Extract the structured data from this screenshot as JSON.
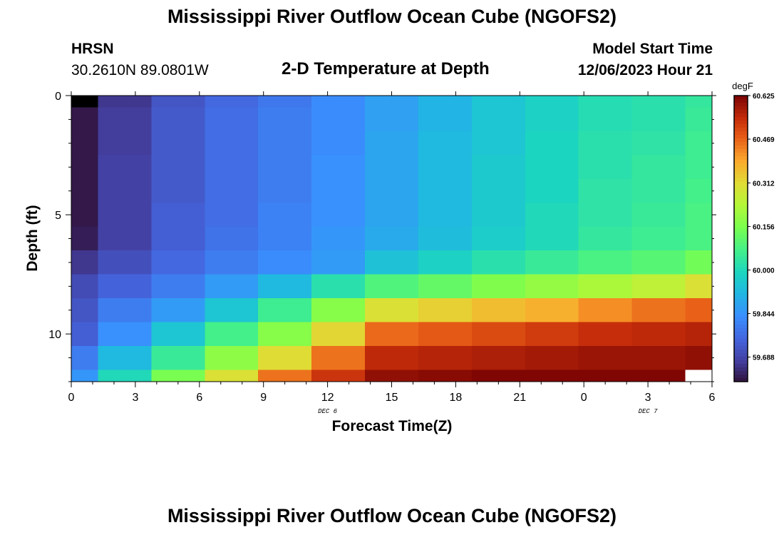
{
  "page": {
    "title": "Mississippi River Outflow Ocean Cube (NGOFS2)",
    "station": "HRSN",
    "location": "30.2610N  89.0801W",
    "subtitle": "2-D Temperature at Depth",
    "model_start_label": "Model Start Time",
    "model_start_value": "12/06/2023 Hour 21",
    "footer_title": "Mississippi River Outflow Ocean Cube (NGOFS2)"
  },
  "chart_data": {
    "type": "heatmap",
    "title": "2-D Temperature at Depth",
    "xlabel": "Forecast Time(Z)",
    "ylabel": "Depth (ft)",
    "x_ticks": [
      {
        "hours": 0,
        "label": "0"
      },
      {
        "hours": 3,
        "label": "3"
      },
      {
        "hours": 6,
        "label": "6"
      },
      {
        "hours": 9,
        "label": "9"
      },
      {
        "hours": 12,
        "label": "12"
      },
      {
        "hours": 15,
        "label": "15"
      },
      {
        "hours": 18,
        "label": "18"
      },
      {
        "hours": 21,
        "label": "21"
      },
      {
        "hours": 24,
        "label": "0"
      },
      {
        "hours": 27,
        "label": "3"
      },
      {
        "hours": 30,
        "label": "6"
      }
    ],
    "date_labels": [
      {
        "hours": 12,
        "label": "DEC 6"
      },
      {
        "hours": 27,
        "label": "DEC 7"
      }
    ],
    "y_ticks": [
      0,
      5,
      10
    ],
    "xlim": [
      0,
      30
    ],
    "ylim": [
      0,
      12
    ],
    "colorbar": {
      "unit": "degF",
      "min": 59.6,
      "max": 60.625,
      "tick_values": [
        60.625,
        60.469,
        60.312,
        60.156,
        60.0,
        59.844,
        59.688
      ],
      "tick_labels": [
        "60.625",
        "60.469",
        "60.312",
        "60.156",
        "60.000",
        "59.844",
        "59.688"
      ]
    },
    "columns": [
      {
        "start": 0,
        "end": 1.25
      },
      {
        "start": 1.25,
        "end": 3.75
      },
      {
        "start": 3.75,
        "end": 6.25
      },
      {
        "start": 6.25,
        "end": 8.75
      },
      {
        "start": 8.75,
        "end": 11.25
      },
      {
        "start": 11.25,
        "end": 13.75
      },
      {
        "start": 13.75,
        "end": 16.25
      },
      {
        "start": 16.25,
        "end": 18.75
      },
      {
        "start": 18.75,
        "end": 21.25
      },
      {
        "start": 21.25,
        "end": 23.75
      },
      {
        "start": 23.75,
        "end": 26.25
      },
      {
        "start": 26.25,
        "end": 28.75
      },
      {
        "start": 28.75,
        "end": 30
      }
    ],
    "depth_bins": [
      [
        0,
        0.5
      ],
      [
        0.5,
        1.5
      ],
      [
        1.5,
        2.5
      ],
      [
        2.5,
        3.5
      ],
      [
        3.5,
        4.5
      ],
      [
        4.5,
        5.5
      ],
      [
        5.5,
        6.5
      ],
      [
        6.5,
        7.5
      ],
      [
        7.5,
        8.5
      ],
      [
        8.5,
        9.5
      ],
      [
        9.5,
        10.5
      ],
      [
        10.5,
        11.5
      ],
      [
        11.5,
        12
      ]
    ],
    "values": [
      [
        59.58,
        59.66,
        59.72,
        59.76,
        59.79,
        59.83,
        59.87,
        59.91,
        59.95,
        59.98,
        60.01,
        60.02,
        60.04
      ],
      [
        59.61,
        59.67,
        59.73,
        59.77,
        59.8,
        59.83,
        59.87,
        59.91,
        59.95,
        59.98,
        60.01,
        60.02,
        60.05
      ],
      [
        59.61,
        59.67,
        59.73,
        59.77,
        59.8,
        59.83,
        59.88,
        59.92,
        59.95,
        59.99,
        60.02,
        60.03,
        60.06
      ],
      [
        59.61,
        59.68,
        59.73,
        59.77,
        59.8,
        59.84,
        59.88,
        59.92,
        59.96,
        59.99,
        60.02,
        60.04,
        60.06
      ],
      [
        59.61,
        59.68,
        59.73,
        59.77,
        59.8,
        59.84,
        59.88,
        59.92,
        59.96,
        59.99,
        60.03,
        60.04,
        60.07
      ],
      [
        59.61,
        59.68,
        59.74,
        59.77,
        59.81,
        59.84,
        59.88,
        59.92,
        59.96,
        60.0,
        60.03,
        60.05,
        60.08
      ],
      [
        59.62,
        59.68,
        59.74,
        59.78,
        59.81,
        59.85,
        59.89,
        59.93,
        59.97,
        60.0,
        60.04,
        60.06,
        60.08
      ],
      [
        59.66,
        59.71,
        59.76,
        59.8,
        59.83,
        59.86,
        59.94,
        59.98,
        60.02,
        60.05,
        60.08,
        60.1,
        60.14
      ],
      [
        59.7,
        59.75,
        59.8,
        59.86,
        59.92,
        60.02,
        60.09,
        60.12,
        60.16,
        60.19,
        60.22,
        60.25,
        60.3
      ],
      [
        59.72,
        59.8,
        59.86,
        59.95,
        60.06,
        60.17,
        60.3,
        60.33,
        60.36,
        60.38,
        60.42,
        60.45,
        60.47
      ],
      [
        59.74,
        59.84,
        59.95,
        60.07,
        60.17,
        60.32,
        60.46,
        60.48,
        60.5,
        60.52,
        60.54,
        60.55,
        60.56
      ],
      [
        59.8,
        59.92,
        60.05,
        60.18,
        60.31,
        60.45,
        60.55,
        60.56,
        60.57,
        60.58,
        60.59,
        60.59,
        60.6
      ],
      [
        59.85,
        60.0,
        60.15,
        60.3,
        60.45,
        60.53,
        60.6,
        60.61,
        60.62,
        60.62,
        60.62,
        60.62,
        null
      ]
    ]
  },
  "colors": {
    "axis": "#000000",
    "missing": "#ffffff",
    "top_left_cell": "#000000"
  }
}
